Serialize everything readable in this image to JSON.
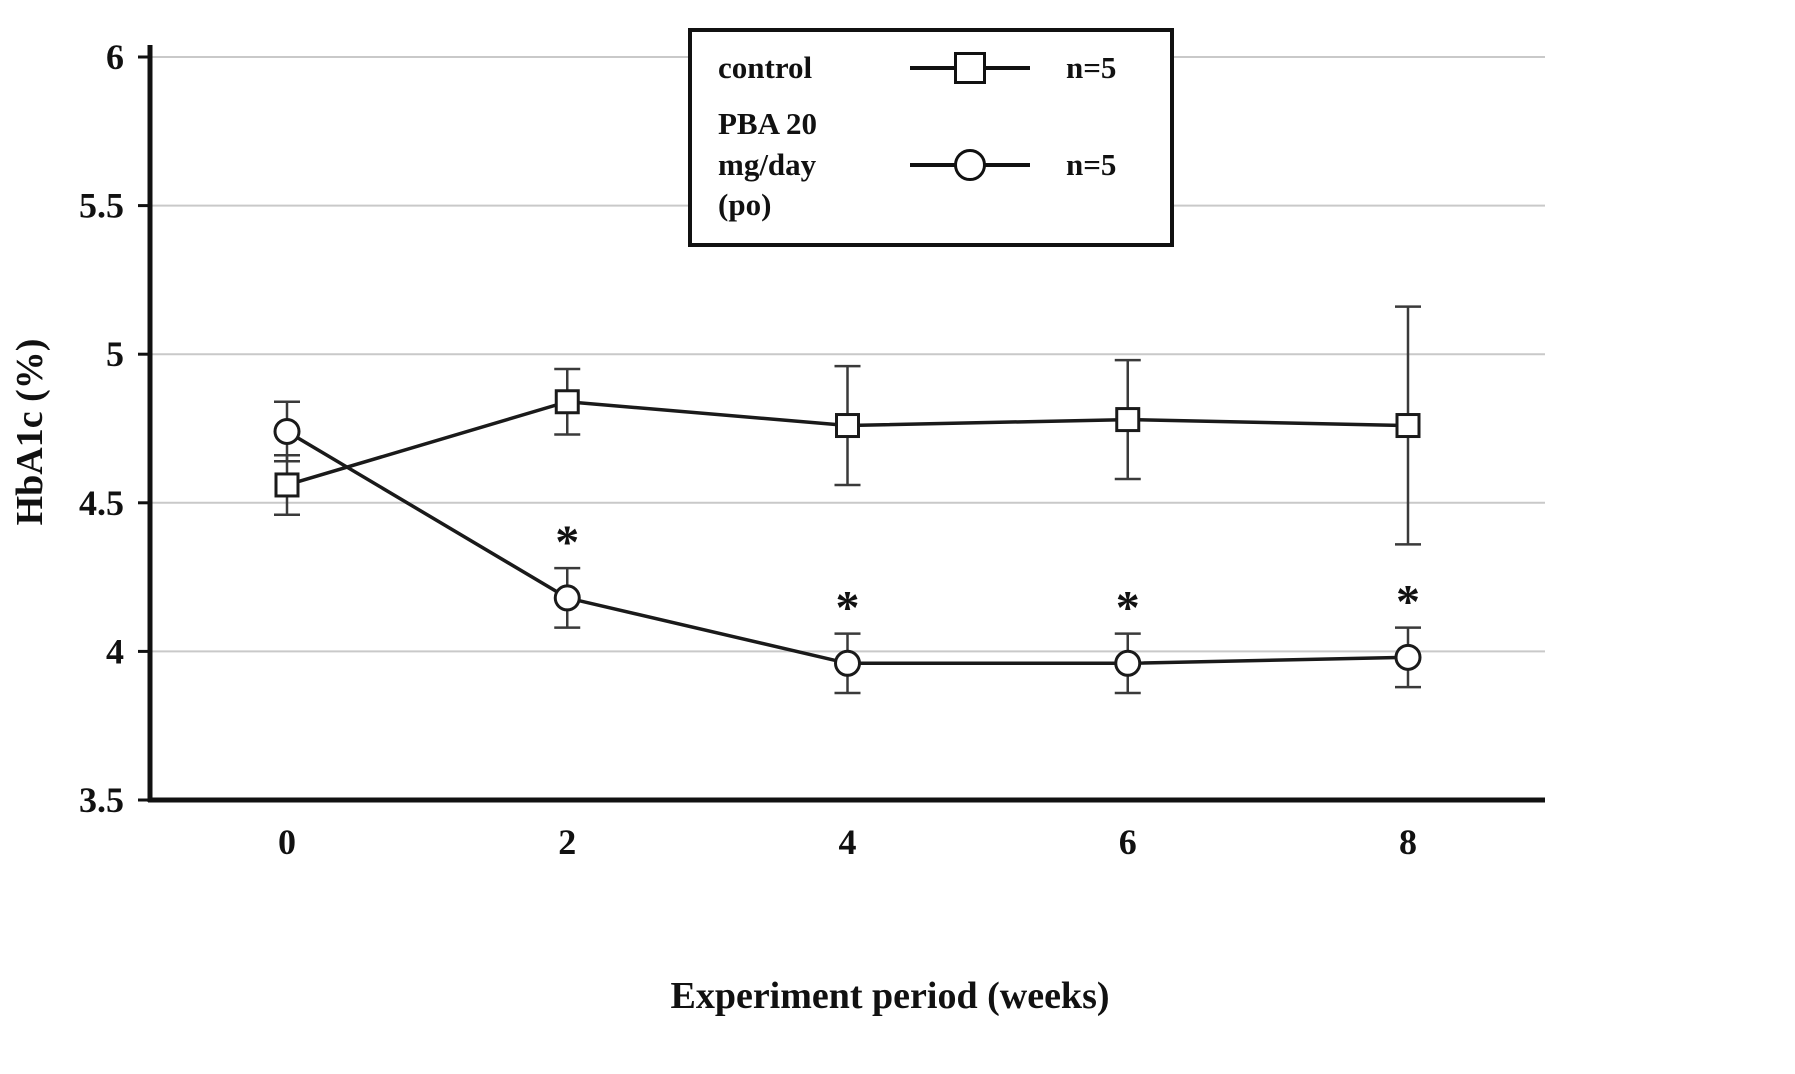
{
  "legend": {
    "items": [
      {
        "label": "control",
        "marker": "square",
        "n_label": "n=5"
      },
      {
        "label_line1": "PBA 20 mg/day",
        "label_line2": "(po)",
        "marker": "circle",
        "n_label": "n=5"
      }
    ]
  },
  "chart_data": {
    "type": "line",
    "x": [
      0,
      2,
      4,
      6,
      8
    ],
    "xlabel": "Experiment period (weeks)",
    "ylabel": "HbA1c (%)",
    "title": "",
    "ylim": [
      3.5,
      6
    ],
    "yticks": [
      3.5,
      4,
      4.5,
      5,
      5.5,
      6
    ],
    "xticks": [
      0,
      2,
      4,
      6,
      8
    ],
    "grid": "horizontal-gridlines",
    "legend_position": "top-center",
    "significance_symbol": "*",
    "series": [
      {
        "name": "control",
        "marker": "square",
        "n": "n=5",
        "values": [
          4.56,
          4.84,
          4.76,
          4.78,
          4.76
        ],
        "errors": [
          0.1,
          0.11,
          0.2,
          0.2,
          0.4
        ],
        "significance": [
          false,
          false,
          false,
          false,
          false
        ]
      },
      {
        "name": "PBA 20 mg/day (po)",
        "marker": "circle",
        "n": "n=5",
        "values": [
          4.74,
          4.18,
          3.96,
          3.96,
          3.98
        ],
        "errors": [
          0.1,
          0.1,
          0.1,
          0.1,
          0.1
        ],
        "significance": [
          false,
          true,
          true,
          true,
          true
        ]
      }
    ]
  }
}
